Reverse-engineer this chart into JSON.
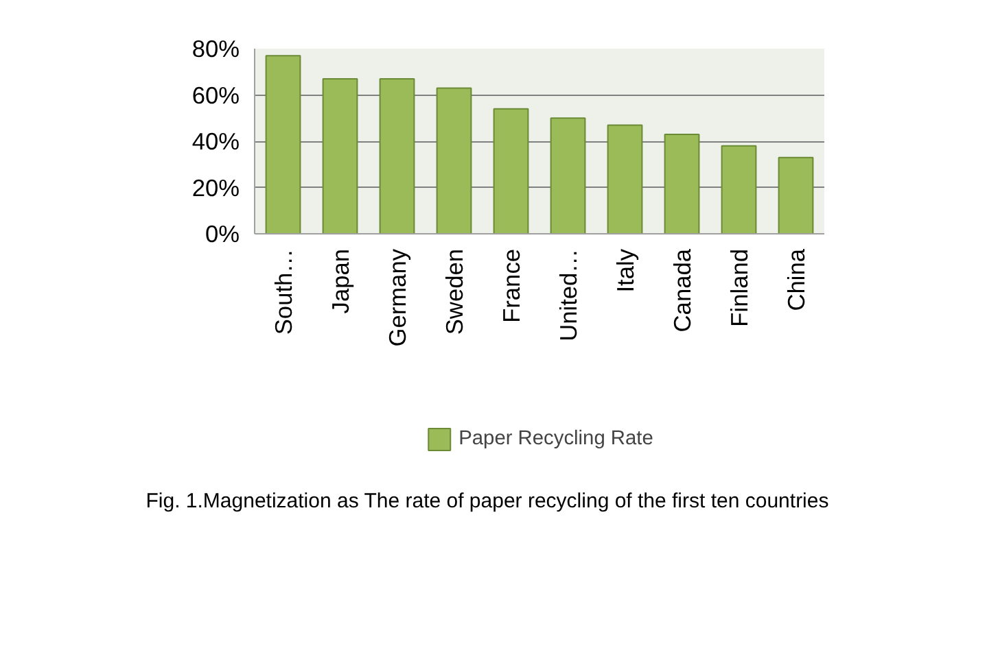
{
  "chart_data": {
    "type": "bar",
    "categories": [
      "South…",
      "Japan",
      "Germany",
      "Sweden",
      "France",
      "United…",
      "Italy",
      "Canada",
      "Finland",
      "China"
    ],
    "series": [
      {
        "name": "Paper Recycling Rate",
        "color": "#9bbb59",
        "values": [
          77,
          67,
          67,
          63,
          54,
          50,
          47,
          43,
          38,
          33
        ]
      }
    ],
    "ylim": [
      0,
      80
    ],
    "yticks": [
      {
        "value": 0,
        "label": "0%"
      },
      {
        "value": 20,
        "label": "20%"
      },
      {
        "value": 40,
        "label": "40%"
      },
      {
        "value": 60,
        "label": "60%"
      },
      {
        "value": 80,
        "label": "80%"
      }
    ],
    "grid": "y",
    "legend": "bottom",
    "annotations": [
      "Fig. 1.Magnetization as The rate of paper recycling of the first ten countries"
    ]
  }
}
